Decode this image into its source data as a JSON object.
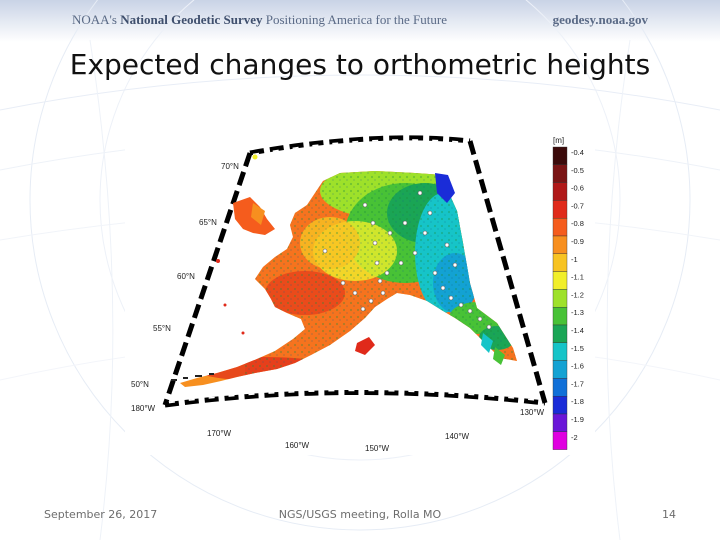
{
  "header": {
    "org_prefix": "NOAA's ",
    "org_name": "National Geodetic Survey",
    "tagline": " Positioning America for the Future",
    "website": "geodesy.noaa.gov"
  },
  "slide": {
    "title": "Expected changes to orthometric heights"
  },
  "figure": {
    "colorbar_unit": "[m]",
    "colorbar_ticks": [
      "-0.4",
      "-0.5",
      "-0.6",
      "-0.7",
      "-0.8",
      "-0.9",
      "-1",
      "-1.1",
      "-1.2",
      "-1.3",
      "-1.4",
      "-1.5",
      "-1.6",
      "-1.7",
      "-1.8",
      "-1.9",
      "-2"
    ],
    "colorbar_colors": [
      "#3b0a0a",
      "#7a1414",
      "#b01818",
      "#e02a1a",
      "#f55c1d",
      "#f78f1f",
      "#f7c322",
      "#f1ef2a",
      "#9ee12a",
      "#48c236",
      "#1aa555",
      "#16c4c8",
      "#13a2d3",
      "#1070d8",
      "#1a2cd8",
      "#6a16d8",
      "#e000e0"
    ],
    "lat_labels": [
      "70°N",
      "65°N",
      "60°N",
      "55°N",
      "50°N"
    ],
    "lon_labels": [
      "180°W",
      "170°W",
      "160°W",
      "150°W",
      "140°W",
      "130°W"
    ]
  },
  "footer": {
    "date": "September 26, 2017",
    "event": "NGS/USGS meeting, Rolla MO",
    "page_number": "14"
  }
}
